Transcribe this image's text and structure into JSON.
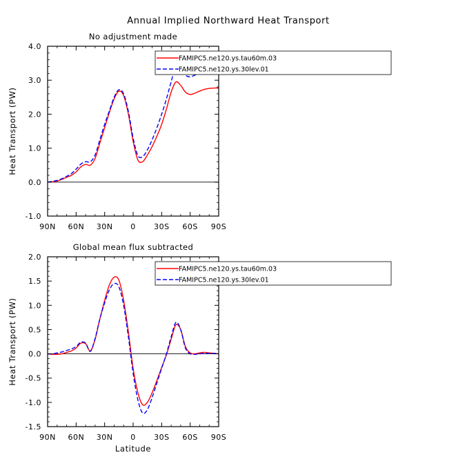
{
  "figure": {
    "title": "Annual Implied Northward Heat Transport"
  },
  "chart_data": [
    {
      "type": "line",
      "title": "No adjustment made",
      "xlabel": "",
      "ylabel": "Heat Transport (PW)",
      "xlim": [
        90,
        -90
      ],
      "ylim": [
        -1.0,
        4.0
      ],
      "xticks": [
        90,
        60,
        30,
        0,
        -30,
        -60,
        -90
      ],
      "xtick_labels": [
        "90N",
        "60N",
        "30N",
        "0",
        "30S",
        "60S",
        "90S"
      ],
      "yticks": [
        -1.0,
        0.0,
        1.0,
        2.0,
        3.0,
        4.0
      ],
      "ytick_labels": [
        "-1.0",
        "0.0",
        "1.0",
        "2.0",
        "3.0",
        "4.0"
      ],
      "zero_line": true,
      "legend_position": "top-right",
      "series": [
        {
          "name": "FAMIPC5.ne120.ys.tau60m.03",
          "color": "#ff0000",
          "dash": "solid",
          "x": [
            90,
            85,
            80,
            75,
            70,
            65,
            60,
            55,
            50,
            45,
            40,
            35,
            30,
            25,
            20,
            15,
            10,
            5,
            0,
            -5,
            -10,
            -15,
            -20,
            -25,
            -30,
            -35,
            -40,
            -45,
            -50,
            -55,
            -60,
            -65,
            -70,
            -75,
            -80,
            -85,
            -90
          ],
          "y": [
            0.0,
            0.01,
            0.03,
            0.08,
            0.14,
            0.2,
            0.3,
            0.45,
            0.52,
            0.5,
            0.7,
            1.15,
            1.6,
            2.05,
            2.45,
            2.68,
            2.55,
            2.0,
            1.2,
            0.65,
            0.6,
            0.8,
            1.05,
            1.35,
            1.7,
            2.15,
            2.65,
            2.95,
            2.85,
            2.65,
            2.58,
            2.62,
            2.68,
            2.73,
            2.76,
            2.77,
            2.77
          ]
        },
        {
          "name": "FAMIPC5.ne120.ys.30lev.01",
          "color": "#0000ff",
          "dash": "dashed",
          "x": [
            90,
            85,
            80,
            75,
            70,
            65,
            60,
            55,
            50,
            45,
            40,
            35,
            30,
            25,
            20,
            15,
            10,
            5,
            0,
            -5,
            -10,
            -15,
            -20,
            -25,
            -30,
            -35,
            -40,
            -45,
            -50,
            -55,
            -60,
            -65,
            -70,
            -75,
            -80,
            -85,
            -90
          ],
          "y": [
            0.0,
            0.02,
            0.05,
            0.1,
            0.17,
            0.25,
            0.38,
            0.53,
            0.6,
            0.6,
            0.8,
            1.25,
            1.7,
            2.1,
            2.5,
            2.72,
            2.6,
            2.08,
            1.3,
            0.78,
            0.75,
            0.95,
            1.25,
            1.6,
            2.0,
            2.45,
            2.95,
            3.43,
            3.35,
            3.15,
            3.1,
            3.15,
            3.2,
            3.24,
            3.26,
            3.27,
            3.27
          ]
        }
      ]
    },
    {
      "type": "line",
      "title": "Global mean flux subtracted",
      "xlabel": "Latitude",
      "ylabel": "Heat Transport (PW)",
      "xlim": [
        90,
        -90
      ],
      "ylim": [
        -1.5,
        2.0
      ],
      "xticks": [
        90,
        60,
        30,
        0,
        -30,
        -60,
        -90
      ],
      "xtick_labels": [
        "90N",
        "60N",
        "30N",
        "0",
        "30S",
        "60S",
        "90S"
      ],
      "yticks": [
        -1.5,
        -1.0,
        -0.5,
        0.0,
        0.5,
        1.0,
        1.5,
        2.0
      ],
      "ytick_labels": [
        "-1.5",
        "-1.0",
        "-0.5",
        "0.0",
        "0.5",
        "1.0",
        "1.5",
        "2.0"
      ],
      "zero_line": true,
      "legend_position": "top-right",
      "series": [
        {
          "name": "FAMIPC5.ne120.ys.tau60m.03",
          "color": "#ff0000",
          "dash": "solid",
          "x": [
            90,
            85,
            80,
            75,
            70,
            65,
            60,
            55,
            50,
            45,
            40,
            35,
            30,
            25,
            20,
            15,
            10,
            5,
            0,
            -5,
            -10,
            -15,
            -20,
            -25,
            -30,
            -35,
            -40,
            -45,
            -50,
            -55,
            -60,
            -65,
            -70,
            -75,
            -80,
            -85,
            -90
          ],
          "y": [
            0.0,
            -0.01,
            -0.01,
            0.0,
            0.03,
            0.06,
            0.12,
            0.22,
            0.21,
            0.06,
            0.3,
            0.72,
            1.1,
            1.42,
            1.58,
            1.52,
            1.1,
            0.45,
            -0.3,
            -0.8,
            -1.05,
            -1.0,
            -0.8,
            -0.55,
            -0.28,
            -0.02,
            0.3,
            0.6,
            0.5,
            0.15,
            0.02,
            0.0,
            0.02,
            0.03,
            0.02,
            0.01,
            0.0
          ]
        },
        {
          "name": "FAMIPC5.ne120.ys.30lev.01",
          "color": "#0000ff",
          "dash": "dashed",
          "x": [
            90,
            85,
            80,
            75,
            70,
            65,
            60,
            55,
            50,
            45,
            40,
            35,
            30,
            25,
            20,
            15,
            10,
            5,
            0,
            -5,
            -10,
            -15,
            -20,
            -25,
            -30,
            -35,
            -40,
            -45,
            -50,
            -55,
            -60,
            -65,
            -70,
            -75,
            -80,
            -85,
            -90
          ],
          "y": [
            0.0,
            0.0,
            0.02,
            0.04,
            0.07,
            0.1,
            0.15,
            0.24,
            0.22,
            0.05,
            0.32,
            0.72,
            1.05,
            1.32,
            1.45,
            1.38,
            1.0,
            0.35,
            -0.4,
            -0.95,
            -1.22,
            -1.15,
            -0.9,
            -0.6,
            -0.3,
            0.0,
            0.35,
            0.65,
            0.5,
            0.12,
            0.0,
            -0.01,
            0.0,
            0.01,
            0.01,
            0.01,
            0.0
          ]
        }
      ]
    }
  ]
}
